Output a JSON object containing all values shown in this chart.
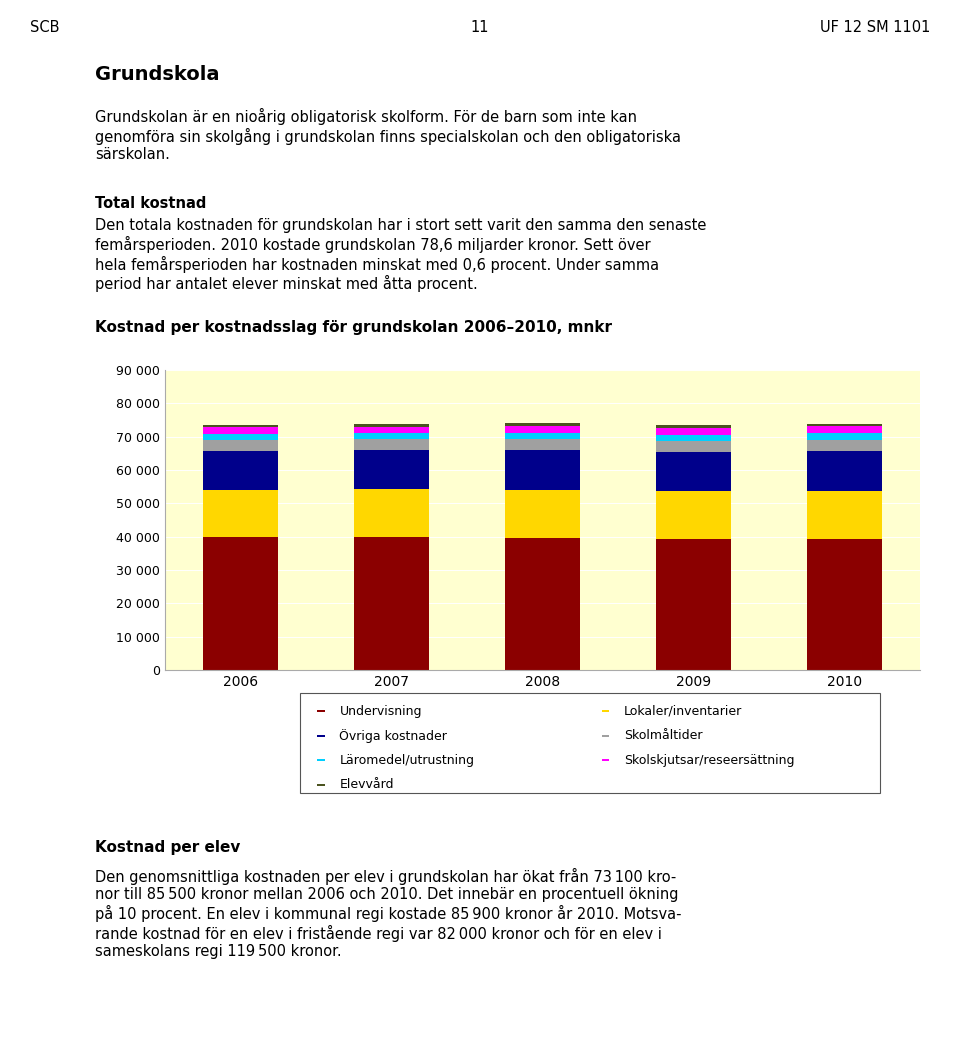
{
  "title": "Kostnad per kostnadsslag för grundskolan 2006–2010, mnkr",
  "years": [
    2006,
    2007,
    2008,
    2009,
    2010
  ],
  "categories": [
    "Undervisning",
    "Lokaler/inventarier",
    "Övriga kostnader",
    "Skolmåltider",
    "Läromedel/utrustning",
    "Skolskjutsar/reseersättning",
    "Elevvård"
  ],
  "colors": [
    "#8B0000",
    "#FFD700",
    "#00008B",
    "#A0A0A0",
    "#00CFFF",
    "#FF00FF",
    "#4B5320"
  ],
  "data": {
    "Undervisning": [
      39800,
      39900,
      39600,
      39400,
      39200
    ],
    "Lokaler/inventarier": [
      14200,
      14400,
      14500,
      14300,
      14500
    ],
    "Övriga kostnader": [
      11800,
      11700,
      12000,
      11800,
      12000
    ],
    "Skolmåltider": [
      3200,
      3200,
      3300,
      3300,
      3400
    ],
    "Läromedel/utrustning": [
      1800,
      1800,
      1800,
      1800,
      1900
    ],
    "Skolskjutsar/reseersättning": [
      2000,
      2000,
      2100,
      2100,
      2100
    ],
    "Elevvård": [
      700,
      700,
      700,
      700,
      700
    ]
  },
  "ylim": [
    0,
    90000
  ],
  "yticks": [
    0,
    10000,
    20000,
    30000,
    40000,
    50000,
    60000,
    70000,
    80000,
    90000
  ],
  "chart_bg": "#FFFFD0",
  "page_bg": "#FFFFFF",
  "header_left": "SCB",
  "header_center": "11",
  "header_right": "UF 12 SM 1101",
  "section_title": "Grundskola",
  "bar_width": 0.5,
  "legend_col1": [
    "Undervisning",
    "Övriga kostnader",
    "Läromedel/utrustning",
    "Elevvård"
  ],
  "legend_col2": [
    "Lokaler/inventarier",
    "Skolmåltider",
    "Skolskjutsar/reseersättning"
  ]
}
